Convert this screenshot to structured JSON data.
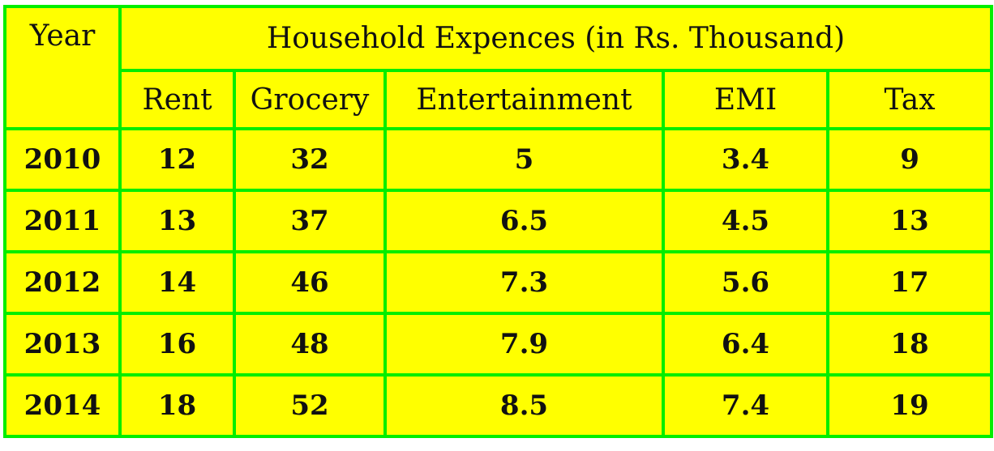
{
  "chart_data": {
    "type": "table",
    "title": "Household Expences (in Rs. Thousand)",
    "row_header_label": "Year",
    "columns": [
      "Rent",
      "Grocery",
      "Entertainment",
      "EMI",
      "Tax"
    ],
    "rows": [
      {
        "year": "2010",
        "values": [
          "12",
          "32",
          "5",
          "3.4",
          "9"
        ]
      },
      {
        "year": "2011",
        "values": [
          "13",
          "37",
          "6.5",
          "4.5",
          "13"
        ]
      },
      {
        "year": "2012",
        "values": [
          "14",
          "46",
          "7.3",
          "5.6",
          "17"
        ]
      },
      {
        "year": "2013",
        "values": [
          "16",
          "48",
          "7.9",
          "6.4",
          "18"
        ]
      },
      {
        "year": "2014",
        "values": [
          "18",
          "52",
          "8.5",
          "7.4",
          "19"
        ]
      }
    ],
    "colors": {
      "background": "#ffff00",
      "border": "#00ee00",
      "text": "#111111"
    }
  }
}
